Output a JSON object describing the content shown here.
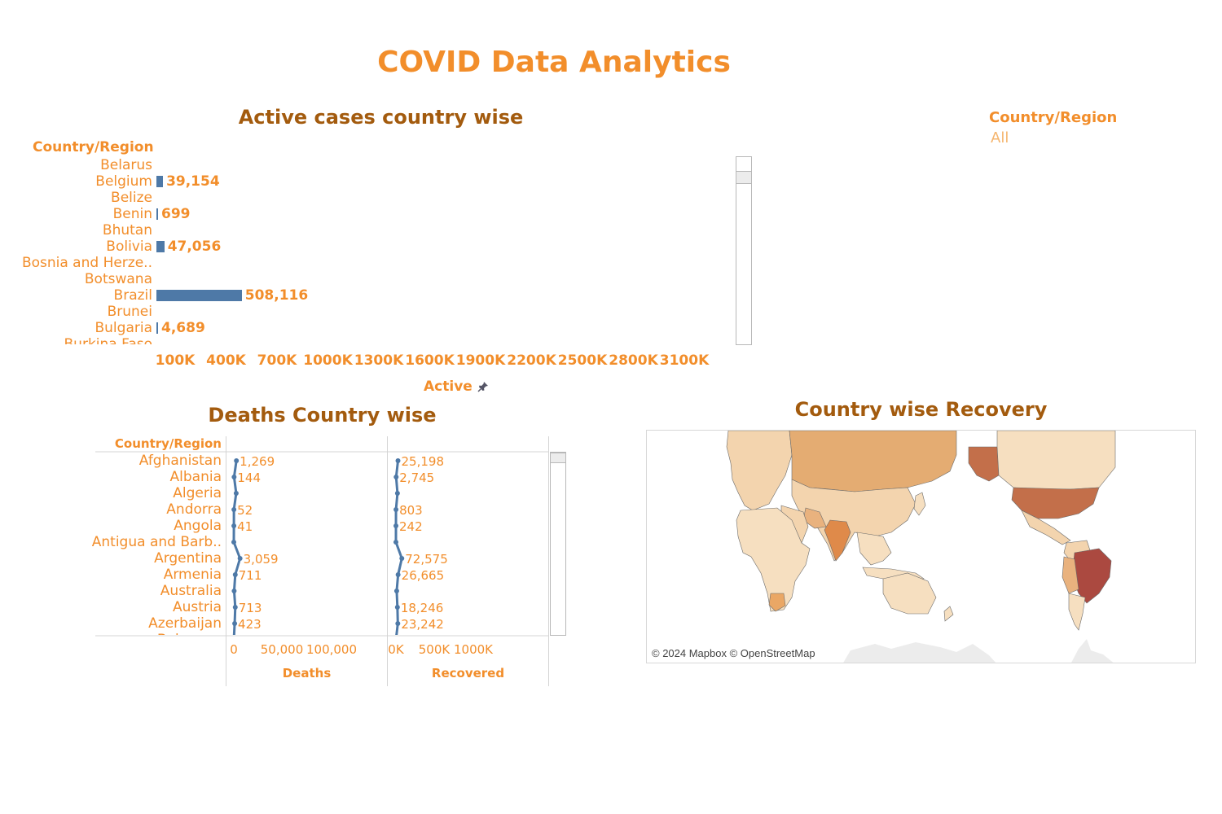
{
  "dashboard": {
    "title": "COVID Data Analytics"
  },
  "active_sheet": {
    "title": "Active cases country wise",
    "row_header": "Country/Region",
    "axis_title": "Active",
    "pin_icon": "pin-icon",
    "rows": [
      {
        "label": "Belarus",
        "value": null,
        "value_label": ""
      },
      {
        "label": "Belgium",
        "value": 39154,
        "value_label": "39,154"
      },
      {
        "label": "Belize",
        "value": null,
        "value_label": ""
      },
      {
        "label": "Benin",
        "value": 699,
        "value_label": "699"
      },
      {
        "label": "Bhutan",
        "value": null,
        "value_label": ""
      },
      {
        "label": "Bolivia",
        "value": 47056,
        "value_label": "47,056"
      },
      {
        "label": "Bosnia and Herze..",
        "value": null,
        "value_label": ""
      },
      {
        "label": "Botswana",
        "value": null,
        "value_label": ""
      },
      {
        "label": "Brazil",
        "value": 508116,
        "value_label": "508,116"
      },
      {
        "label": "Brunei",
        "value": null,
        "value_label": ""
      },
      {
        "label": "Bulgaria",
        "value": 4689,
        "value_label": "4,689"
      },
      {
        "label": "Burkina Faso",
        "value": null,
        "value_label": ""
      }
    ],
    "ticks": [
      "100K",
      "400K",
      "700K",
      "1000K",
      "1300K",
      "1600K",
      "1900K",
      "2200K",
      "2500K",
      "2800K",
      "3100K"
    ]
  },
  "deaths_sheet": {
    "title": "Deaths Country wise",
    "row_header": "Country/Region",
    "deaths_axis_title": "Deaths",
    "recovered_axis_title": "Recovered",
    "deaths_ticks": [
      "0",
      "50,000",
      "100,000"
    ],
    "recovered_ticks": [
      "0K",
      "500K",
      "1000K"
    ],
    "rows": [
      {
        "label": "Afghanistan",
        "deaths": 1269,
        "deaths_label": "1,269",
        "recovered": 25198,
        "recovered_label": "25,198"
      },
      {
        "label": "Albania",
        "deaths": 144,
        "deaths_label": "144",
        "recovered": 2745,
        "recovered_label": "2,745"
      },
      {
        "label": "Algeria",
        "deaths": 1163,
        "deaths_label": "",
        "recovered": 18837,
        "recovered_label": ""
      },
      {
        "label": "Andorra",
        "deaths": 52,
        "deaths_label": "52",
        "recovered": 803,
        "recovered_label": "803"
      },
      {
        "label": "Angola",
        "deaths": 41,
        "deaths_label": "41",
        "recovered": 242,
        "recovered_label": "242"
      },
      {
        "label": "Antigua and Barb..",
        "deaths": 3,
        "deaths_label": "",
        "recovered": 66,
        "recovered_label": ""
      },
      {
        "label": "Argentina",
        "deaths": 3059,
        "deaths_label": "3,059",
        "recovered": 72575,
        "recovered_label": "72,575"
      },
      {
        "label": "Armenia",
        "deaths": 711,
        "deaths_label": "711",
        "recovered": 26665,
        "recovered_label": "26,665"
      },
      {
        "label": "Australia",
        "deaths": 167,
        "deaths_label": "",
        "recovered": 9311,
        "recovered_label": ""
      },
      {
        "label": "Austria",
        "deaths": 713,
        "deaths_label": "713",
        "recovered": 18246,
        "recovered_label": "18,246"
      },
      {
        "label": "Azerbaijan",
        "deaths": 423,
        "deaths_label": "423",
        "recovered": 23242,
        "recovered_label": "23,242"
      },
      {
        "label": "Bahamas",
        "deaths": 11,
        "deaths_label": "",
        "recovered": 91,
        "recovered_label": ""
      }
    ]
  },
  "map_sheet": {
    "title": "Country wise Recovery",
    "attribution": "© 2024 Mapbox © OpenStreetMap"
  },
  "filter": {
    "title": "Country/Region",
    "value": "All"
  },
  "colors": {
    "accent": "#f28e2b",
    "title_dark": "#a35b0e",
    "bar": "#4e79a7"
  },
  "chart_data": [
    {
      "type": "bar",
      "title": "Active cases country wise",
      "xlabel": "Active",
      "ylabel": "Country/Region",
      "orientation": "horizontal",
      "categories": [
        "Belarus",
        "Belgium",
        "Belize",
        "Benin",
        "Bhutan",
        "Bolivia",
        "Bosnia and Herze..",
        "Botswana",
        "Brazil",
        "Brunei",
        "Bulgaria",
        "Burkina Faso"
      ],
      "values": [
        null,
        39154,
        null,
        699,
        null,
        47056,
        null,
        null,
        508116,
        null,
        4689,
        null
      ],
      "xlim": [
        0,
        3250000
      ]
    },
    {
      "type": "line",
      "title": "Deaths Country wise",
      "categories": [
        "Afghanistan",
        "Albania",
        "Algeria",
        "Andorra",
        "Angola",
        "Antigua and Barb..",
        "Argentina",
        "Armenia",
        "Australia",
        "Austria",
        "Azerbaijan",
        "Bahamas"
      ],
      "series": [
        {
          "name": "Deaths",
          "values": [
            1269,
            144,
            1163,
            52,
            41,
            3,
            3059,
            711,
            167,
            713,
            423,
            11
          ],
          "xlim": [
            0,
            150000
          ]
        },
        {
          "name": "Recovered",
          "values": [
            25198,
            2745,
            18837,
            803,
            242,
            66,
            72575,
            26665,
            9311,
            18246,
            23242,
            91
          ],
          "xlim": [
            0,
            1500000
          ]
        }
      ]
    }
  ]
}
